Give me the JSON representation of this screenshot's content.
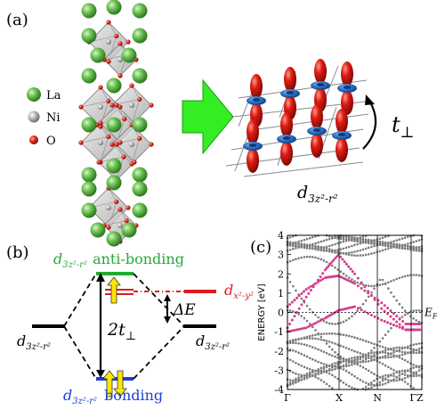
{
  "panel_a": {
    "label": "(a)",
    "legend": [
      {
        "symbol": "la-atom",
        "text": "La",
        "color": "#5fb84a"
      },
      {
        "symbol": "ni-atom",
        "text": "Ni",
        "color": "#b8b8b8"
      },
      {
        "symbol": "o-atom",
        "text": "O",
        "color": "#d8261e"
      }
    ],
    "arrow_color": "#33ee22",
    "hopping_label_main": "t",
    "hopping_label_sub": "⊥",
    "orbital_label_main": "d",
    "orbital_label_sub": "3z²-r²",
    "lobe_color": "#d41414",
    "torus_color": "#2a6fc2"
  },
  "panel_b": {
    "label": "(b)",
    "antibonding_orbital": "d",
    "antibonding_sub": "3z²-r²",
    "antibonding_text": "anti-bonding",
    "antibonding_color": "#22aa33",
    "dx2_orbital": "d",
    "dx2_sub": "x²-y²",
    "dx2_color": "#e01b1b",
    "delta_e": "ΔE",
    "two_t_main": "2t",
    "two_t_sub": "⊥",
    "left_orbital": "d",
    "left_sub": "3z²-r²",
    "right_orbital": "d",
    "right_sub": "3z²-r²",
    "bonding_orbital": "d",
    "bonding_sub": "3z²-r²",
    "bonding_text": "bonding",
    "bonding_color": "#1a3fd6",
    "arrow_fill": "#ffe600"
  },
  "panel_c": {
    "label": "(c)",
    "chart_data": {
      "type": "line",
      "ylabel": "ENERGY [eV]",
      "ylim": [
        -4,
        4
      ],
      "yticks": [
        "4",
        "3",
        "2",
        "1",
        "0",
        "-1",
        "-2",
        "-3",
        "-4"
      ],
      "xticks": [
        "Γ",
        "X",
        "N",
        "ΓZ"
      ],
      "fermi_label": "E",
      "fermi_sub": "F",
      "highlight_color": "#d63c8c",
      "band_color": "#7a7a7a",
      "highlight_bands": [
        {
          "name": "d3z2-r2 bonding",
          "values": [
            -1.0,
            -0.8,
            -0.3,
            0.1,
            0.3,
            -0.4,
            -0.9,
            -0.9
          ]
        },
        {
          "name": "d3z2-r2 antibonding",
          "values": [
            0.3,
            1.2,
            1.8,
            1.9,
            1.5,
            0.5,
            -0.6,
            -0.6
          ]
        },
        {
          "name": "dx2-y2",
          "values": [
            -0.8,
            0.8,
            2.2,
            3.0,
            2.0,
            0.2,
            -0.9,
            -0.9
          ]
        }
      ]
    }
  }
}
